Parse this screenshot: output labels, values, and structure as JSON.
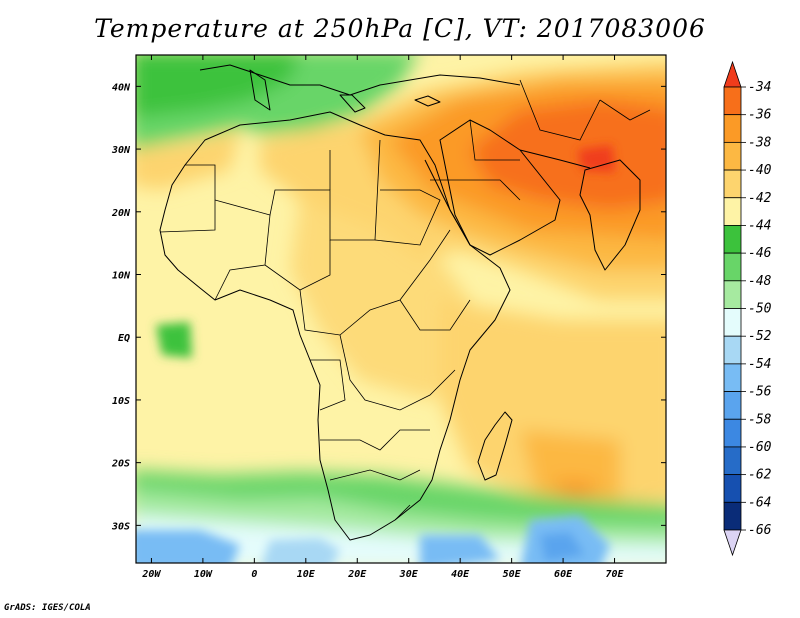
{
  "title": "Temperature at 250hPa [C], VT: 2017083006",
  "credit": "GrADS: IGES/COLA",
  "map": {
    "lat_labels": [
      "40N",
      "30N",
      "20N",
      "10N",
      "EQ",
      "10S",
      "20S",
      "30S"
    ],
    "lat_values": [
      40,
      30,
      20,
      10,
      0,
      -10,
      -20,
      -30
    ],
    "lon_labels": [
      "20W",
      "10W",
      "0",
      "10E",
      "20E",
      "30E",
      "40E",
      "50E",
      "60E",
      "70E"
    ],
    "lon_values": [
      -20,
      -10,
      0,
      10,
      20,
      30,
      40,
      50,
      60,
      70
    ],
    "lon_range": [
      -23,
      80
    ],
    "lat_range": [
      -36,
      45
    ]
  },
  "colorbar": {
    "labels": [
      "-34",
      "-36",
      "-38",
      "-40",
      "-42",
      "-44",
      "-46",
      "-48",
      "-50",
      "-52",
      "-54",
      "-56",
      "-58",
      "-60",
      "-62",
      "-64",
      "-66"
    ],
    "colors": [
      "#f03c1c",
      "#f76f1a",
      "#fb9a26",
      "#fcb843",
      "#fdd46e",
      "#fef3a6",
      "#3cc23c",
      "#68d568",
      "#a6eaa0",
      "#e4fcfc",
      "#a8d8f4",
      "#78bcf4",
      "#5aa4ee",
      "#3c88e2",
      "#266cc8",
      "#1650b0",
      "#0a2c78",
      "#dcd4f4"
    ]
  }
}
